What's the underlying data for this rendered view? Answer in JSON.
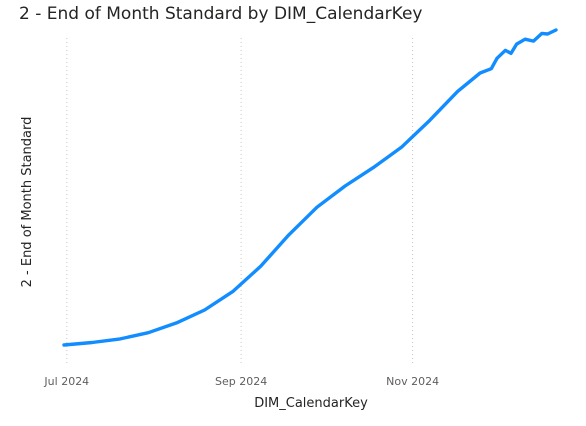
{
  "chart_data": {
    "type": "line",
    "title": "2 - End of Month Standard by DIM_CalendarKey",
    "xlabel": "DIM_CalendarKey",
    "ylabel": "2 - End of Month Standard",
    "x_ticks": [
      {
        "label": "Jul 2024",
        "date": "2024-07-01"
      },
      {
        "label": "Sep 2024",
        "date": "2024-09-01"
      },
      {
        "label": "Nov 2024",
        "date": "2024-11-01"
      }
    ],
    "xlim": [
      "2024-06-30",
      "2024-12-22"
    ],
    "ylim": [
      0,
      100
    ],
    "y_ticks_shown": false,
    "grid": {
      "vertical": true,
      "horizontal": false
    },
    "legend": "none",
    "series": [
      {
        "color": "#118dff",
        "points": [
          {
            "x": "2024-06-30",
            "y": 0
          },
          {
            "x": "2024-07-10",
            "y": 0.8
          },
          {
            "x": "2024-07-20",
            "y": 2
          },
          {
            "x": "2024-07-30",
            "y": 4
          },
          {
            "x": "2024-08-09",
            "y": 7.2
          },
          {
            "x": "2024-08-19",
            "y": 11.4
          },
          {
            "x": "2024-08-29",
            "y": 17.4
          },
          {
            "x": "2024-09-08",
            "y": 25.7
          },
          {
            "x": "2024-09-18",
            "y": 35.9
          },
          {
            "x": "2024-09-28",
            "y": 44.9
          },
          {
            "x": "2024-10-08",
            "y": 51.8
          },
          {
            "x": "2024-10-18",
            "y": 57.8
          },
          {
            "x": "2024-10-28",
            "y": 64.4
          },
          {
            "x": "2024-11-07",
            "y": 73.1
          },
          {
            "x": "2024-11-17",
            "y": 82.6
          },
          {
            "x": "2024-11-25",
            "y": 88.6
          },
          {
            "x": "2024-11-29",
            "y": 90
          },
          {
            "x": "2024-12-01",
            "y": 93.4
          },
          {
            "x": "2024-12-04",
            "y": 96
          },
          {
            "x": "2024-12-06",
            "y": 95
          },
          {
            "x": "2024-12-08",
            "y": 98
          },
          {
            "x": "2024-12-11",
            "y": 99.6
          },
          {
            "x": "2024-12-14",
            "y": 99
          },
          {
            "x": "2024-12-17",
            "y": 101.5
          },
          {
            "x": "2024-12-19",
            "y": 101.3
          },
          {
            "x": "2024-12-22",
            "y": 102.6
          }
        ]
      }
    ]
  }
}
